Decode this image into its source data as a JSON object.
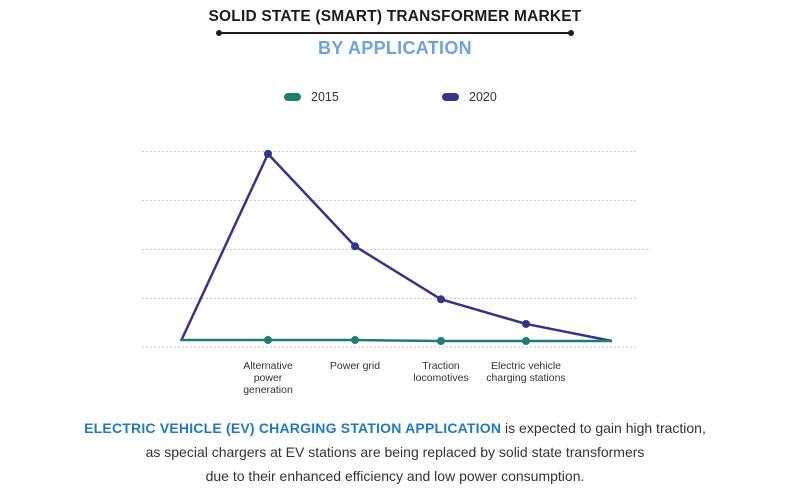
{
  "header": {
    "title": "SOLID STATE (SMART) TRANSFORMER MARKET",
    "subtitle": "BY APPLICATION"
  },
  "colors": {
    "series_2015": "#1f7d74",
    "series_2020": "#33358a",
    "subtitle": "#6fa3df",
    "highlight": "#1f7ac2",
    "grid": "#c8c8c8"
  },
  "chart_data": {
    "type": "line",
    "title": "SOLID STATE (SMART) TRANSFORMER MARKET",
    "subtitle": "BY APPLICATION",
    "xlabel": "",
    "ylabel": "",
    "categories": [
      "",
      "Alternative power generation",
      "Power grid",
      "Traction locomotives",
      "Electric vehicle charging stations",
      ""
    ],
    "category_labels": [
      [],
      [
        "Alternative",
        "power",
        "generation"
      ],
      [
        "Power grid"
      ],
      [
        "Traction",
        "locomotives"
      ],
      [
        "Electric vehicle",
        "charging stations"
      ],
      []
    ],
    "series": [
      {
        "name": "2015",
        "values": [
          0.02,
          0.02,
          0.02,
          0.0,
          0.0,
          0.0
        ]
      },
      {
        "name": "2020",
        "values": [
          0.0,
          3.95,
          2.0,
          0.88,
          0.36,
          0.0
        ]
      }
    ],
    "ylim": [
      0,
      4
    ],
    "grid": true,
    "legend_position": "top"
  },
  "footer": {
    "highlight": "ELECTRIC VEHICLE (EV) CHARGING STATION APPLICATION",
    "line1_rest": " is expected to gain high traction,",
    "line2": "as special chargers at EV stations are being replaced by solid state transformers",
    "line3": "due to their enhanced efficiency and low power consumption."
  }
}
